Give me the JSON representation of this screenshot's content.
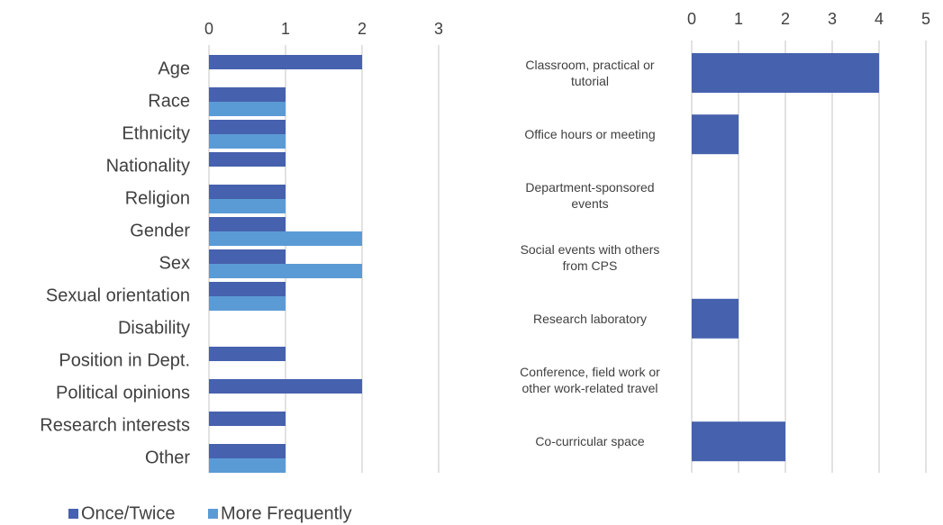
{
  "chart_data": [
    {
      "type": "hbar",
      "categories": [
        "Age",
        "Race",
        "Ethnicity",
        "Nationality",
        "Religion",
        "Gender",
        "Sex",
        "Sexual orientation",
        "Disability",
        "Position in Dept.",
        "Political opinions",
        "Research interests",
        "Other"
      ],
      "series": [
        {
          "name": "Once/Twice",
          "color": "#4661ad",
          "values": [
            2,
            1,
            1,
            1,
            1,
            1,
            1,
            1,
            0,
            1,
            2,
            1,
            1
          ]
        },
        {
          "name": "More Frequently",
          "color": "#5b9bd5",
          "values": [
            0,
            1,
            1,
            0,
            1,
            2,
            2,
            1,
            0,
            0,
            0,
            0,
            1
          ]
        }
      ],
      "xlim": [
        0,
        3
      ],
      "xticks": [
        0,
        1,
        2,
        3
      ],
      "grid": true,
      "legend": "bottom"
    },
    {
      "type": "hbar",
      "categories": [
        "Classroom, practical or tutorial",
        "Office hours or meeting",
        "Department-sponsored events",
        "Social events with others from CPS",
        "Research laboratory",
        "Conference, field work or other work-related travel",
        "Co-curricular space"
      ],
      "values": [
        4,
        1,
        0,
        0,
        1,
        0,
        2
      ],
      "color": "#4661ad",
      "xlim": [
        0,
        5
      ],
      "xticks": [
        0,
        1,
        2,
        3,
        4,
        5
      ],
      "grid": true
    }
  ]
}
